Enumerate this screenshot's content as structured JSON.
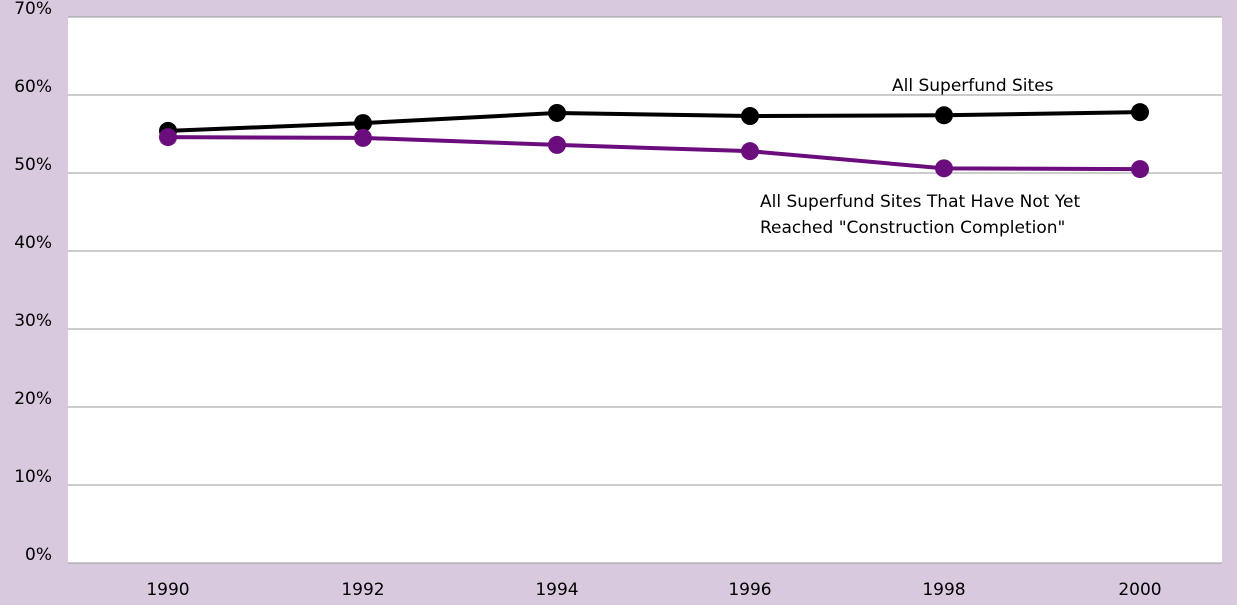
{
  "chart_data": {
    "type": "line",
    "categories": [
      "1990",
      "1992",
      "1994",
      "1996",
      "1998",
      "2000"
    ],
    "series": [
      {
        "name": "All Superfund Sites",
        "color": "#000000",
        "values": [
          55.4,
          56.4,
          57.7,
          57.3,
          57.4,
          57.8
        ]
      },
      {
        "name": "All Superfund Sites That Have Not Yet Reached \"Construction Completion\"",
        "color": "#6b0d7c",
        "values": [
          54.6,
          54.5,
          53.6,
          52.8,
          50.6,
          50.5
        ]
      }
    ],
    "ylim": [
      0,
      70
    ],
    "yticks": [
      {
        "value": 0,
        "label": "0%"
      },
      {
        "value": 10,
        "label": "10%"
      },
      {
        "value": 20,
        "label": "20%"
      },
      {
        "value": 30,
        "label": "30%"
      },
      {
        "value": 40,
        "label": "40%"
      },
      {
        "value": 50,
        "label": "50%"
      },
      {
        "value": 60,
        "label": "60%"
      },
      {
        "value": 70,
        "label": "70%"
      }
    ],
    "grid": true
  }
}
